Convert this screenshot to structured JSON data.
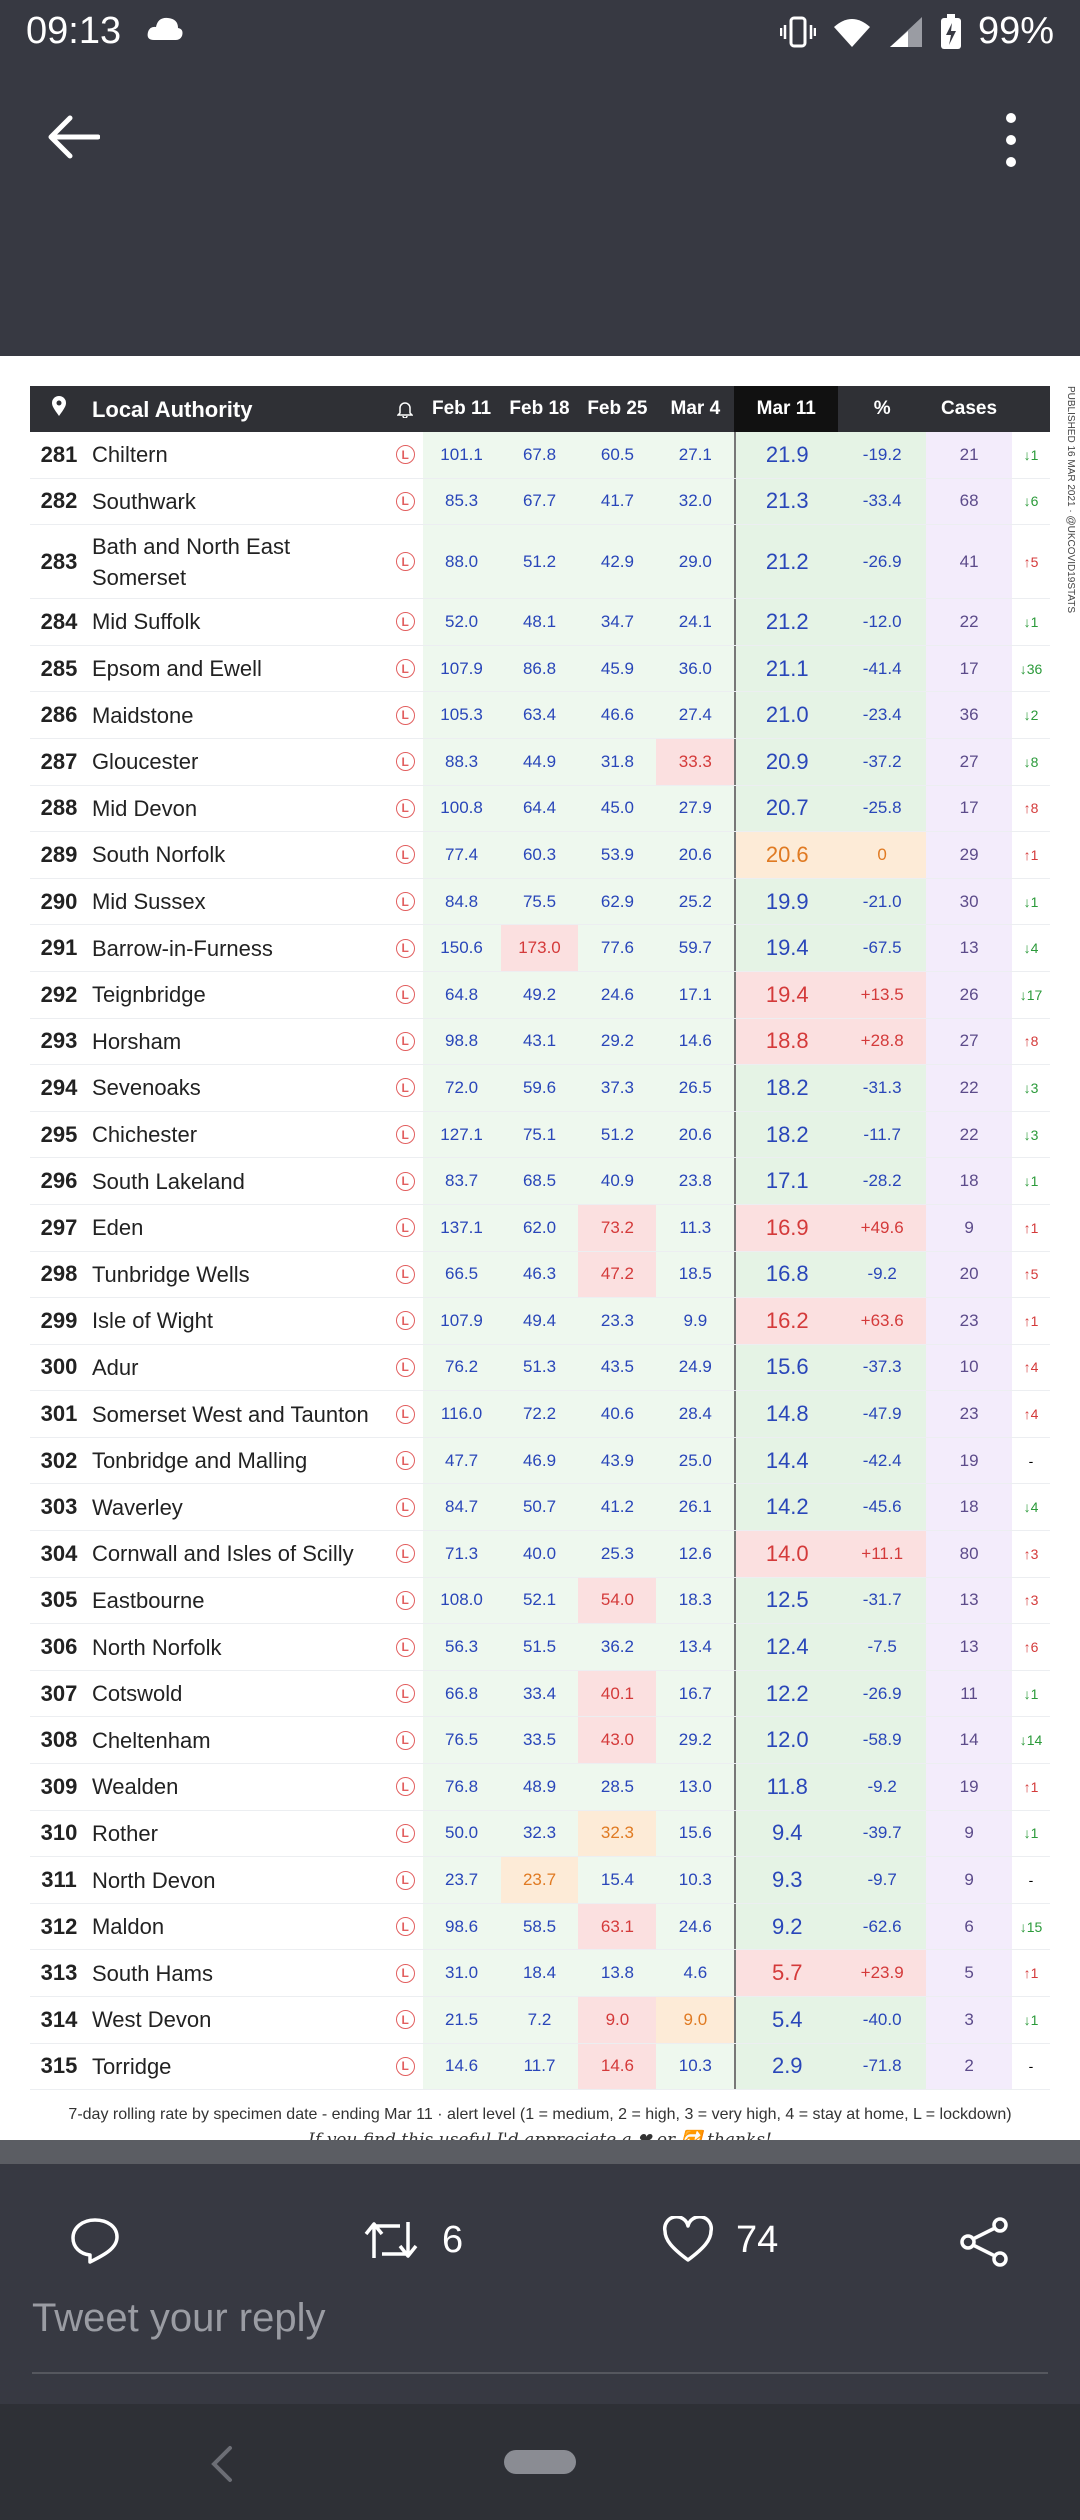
{
  "status": {
    "time": "09:13",
    "battery": "99%"
  },
  "table": {
    "headers": {
      "authority": "Local Authority",
      "w1": "Feb 11",
      "w2": "Feb 18",
      "w3": "Feb 25",
      "w4": "Mar 4",
      "current": "Mar 11",
      "pct": "%",
      "cases": "Cases"
    },
    "rows": [
      {
        "rank": "281",
        "name": "Chiltern",
        "w1": "101.1",
        "w2": "67.8",
        "w3": "60.5",
        "w4": "27.1",
        "rate": "21.9",
        "pct": "-19.2",
        "cases": "21",
        "change": "↓1",
        "dir": "dn"
      },
      {
        "rank": "282",
        "name": "Southwark",
        "w1": "85.3",
        "w2": "67.7",
        "w3": "41.7",
        "w4": "32.0",
        "rate": "21.3",
        "pct": "-33.4",
        "cases": "68",
        "change": "↓6",
        "dir": "dn"
      },
      {
        "rank": "283",
        "name": "Bath and North East Somerset",
        "w1": "88.0",
        "w2": "51.2",
        "w3": "42.9",
        "w4": "29.0",
        "rate": "21.2",
        "pct": "-26.9",
        "cases": "41",
        "change": "↑5",
        "dir": "up",
        "tall": true
      },
      {
        "rank": "284",
        "name": "Mid Suffolk",
        "w1": "52.0",
        "w2": "48.1",
        "w3": "34.7",
        "w4": "24.1",
        "rate": "21.2",
        "pct": "-12.0",
        "cases": "22",
        "change": "↓1",
        "dir": "dn"
      },
      {
        "rank": "285",
        "name": "Epsom and Ewell",
        "w1": "107.9",
        "w2": "86.8",
        "w3": "45.9",
        "w4": "36.0",
        "rate": "21.1",
        "pct": "-41.4",
        "cases": "17",
        "change": "↓36",
        "dir": "dn"
      },
      {
        "rank": "286",
        "name": "Maidstone",
        "w1": "105.3",
        "w2": "63.4",
        "w3": "46.6",
        "w4": "27.4",
        "rate": "21.0",
        "pct": "-23.4",
        "cases": "36",
        "change": "↓2",
        "dir": "dn"
      },
      {
        "rank": "287",
        "name": "Gloucester",
        "w1": "88.3",
        "w2": "44.9",
        "w3": "31.8",
        "w4": "33.3",
        "rate": "20.9",
        "pct": "-37.2",
        "cases": "27",
        "change": "↓8",
        "dir": "dn",
        "w4c": "r"
      },
      {
        "rank": "288",
        "name": "Mid Devon",
        "w1": "100.8",
        "w2": "64.4",
        "w3": "45.0",
        "w4": "27.9",
        "rate": "20.7",
        "pct": "-25.8",
        "cases": "17",
        "change": "↑8",
        "dir": "up"
      },
      {
        "rank": "289",
        "name": "South Norfolk",
        "w1": "77.4",
        "w2": "60.3",
        "w3": "53.9",
        "w4": "20.6",
        "rate": "20.6",
        "pct": "0",
        "cases": "29",
        "change": "↑1",
        "dir": "up",
        "ratec": "o"
      },
      {
        "rank": "290",
        "name": "Mid Sussex",
        "w1": "84.8",
        "w2": "75.5",
        "w3": "62.9",
        "w4": "25.2",
        "rate": "19.9",
        "pct": "-21.0",
        "cases": "30",
        "change": "↓1",
        "dir": "dn"
      },
      {
        "rank": "291",
        "name": "Barrow-in-Furness",
        "w1": "150.6",
        "w2": "173.0",
        "w3": "77.6",
        "w4": "59.7",
        "rate": "19.4",
        "pct": "-67.5",
        "cases": "13",
        "change": "↓4",
        "dir": "dn",
        "w2c": "r"
      },
      {
        "rank": "292",
        "name": "Teignbridge",
        "w1": "64.8",
        "w2": "49.2",
        "w3": "24.6",
        "w4": "17.1",
        "rate": "19.4",
        "pct": "+13.5",
        "cases": "26",
        "change": "↓17",
        "dir": "dn",
        "ratec": "r"
      },
      {
        "rank": "293",
        "name": "Horsham",
        "w1": "98.8",
        "w2": "43.1",
        "w3": "29.2",
        "w4": "14.6",
        "rate": "18.8",
        "pct": "+28.8",
        "cases": "27",
        "change": "↑8",
        "dir": "up",
        "ratec": "r"
      },
      {
        "rank": "294",
        "name": "Sevenoaks",
        "w1": "72.0",
        "w2": "59.6",
        "w3": "37.3",
        "w4": "26.5",
        "rate": "18.2",
        "pct": "-31.3",
        "cases": "22",
        "change": "↓3",
        "dir": "dn"
      },
      {
        "rank": "295",
        "name": "Chichester",
        "w1": "127.1",
        "w2": "75.1",
        "w3": "51.2",
        "w4": "20.6",
        "rate": "18.2",
        "pct": "-11.7",
        "cases": "22",
        "change": "↓3",
        "dir": "dn"
      },
      {
        "rank": "296",
        "name": "South Lakeland",
        "w1": "83.7",
        "w2": "68.5",
        "w3": "40.9",
        "w4": "23.8",
        "rate": "17.1",
        "pct": "-28.2",
        "cases": "18",
        "change": "↓1",
        "dir": "dn"
      },
      {
        "rank": "297",
        "name": "Eden",
        "w1": "137.1",
        "w2": "62.0",
        "w3": "73.2",
        "w4": "11.3",
        "rate": "16.9",
        "pct": "+49.6",
        "cases": "9",
        "change": "↑1",
        "dir": "up",
        "w3c": "r",
        "ratec": "r"
      },
      {
        "rank": "298",
        "name": "Tunbridge Wells",
        "w1": "66.5",
        "w2": "46.3",
        "w3": "47.2",
        "w4": "18.5",
        "rate": "16.8",
        "pct": "-9.2",
        "cases": "20",
        "change": "↑5",
        "dir": "up",
        "w3c": "r"
      },
      {
        "rank": "299",
        "name": "Isle of Wight",
        "w1": "107.9",
        "w2": "49.4",
        "w3": "23.3",
        "w4": "9.9",
        "rate": "16.2",
        "pct": "+63.6",
        "cases": "23",
        "change": "↑1",
        "dir": "up",
        "ratec": "r"
      },
      {
        "rank": "300",
        "name": "Adur",
        "w1": "76.2",
        "w2": "51.3",
        "w3": "43.5",
        "w4": "24.9",
        "rate": "15.6",
        "pct": "-37.3",
        "cases": "10",
        "change": "↑4",
        "dir": "up"
      },
      {
        "rank": "301",
        "name": "Somerset West and Taunton",
        "w1": "116.0",
        "w2": "72.2",
        "w3": "40.6",
        "w4": "28.4",
        "rate": "14.8",
        "pct": "-47.9",
        "cases": "23",
        "change": "↑4",
        "dir": "up"
      },
      {
        "rank": "302",
        "name": "Tonbridge and Malling",
        "w1": "47.7",
        "w2": "46.9",
        "w3": "43.9",
        "w4": "25.0",
        "rate": "14.4",
        "pct": "-42.4",
        "cases": "19",
        "change": "-",
        "dir": "nc"
      },
      {
        "rank": "303",
        "name": "Waverley",
        "w1": "84.7",
        "w2": "50.7",
        "w3": "41.2",
        "w4": "26.1",
        "rate": "14.2",
        "pct": "-45.6",
        "cases": "18",
        "change": "↓4",
        "dir": "dn"
      },
      {
        "rank": "304",
        "name": "Cornwall and Isles of Scilly",
        "w1": "71.3",
        "w2": "40.0",
        "w3": "25.3",
        "w4": "12.6",
        "rate": "14.0",
        "pct": "+11.1",
        "cases": "80",
        "change": "↑3",
        "dir": "up",
        "ratec": "r"
      },
      {
        "rank": "305",
        "name": "Eastbourne",
        "w1": "108.0",
        "w2": "52.1",
        "w3": "54.0",
        "w4": "18.3",
        "rate": "12.5",
        "pct": "-31.7",
        "cases": "13",
        "change": "↑3",
        "dir": "up",
        "w3c": "r"
      },
      {
        "rank": "306",
        "name": "North Norfolk",
        "w1": "56.3",
        "w2": "51.5",
        "w3": "36.2",
        "w4": "13.4",
        "rate": "12.4",
        "pct": "-7.5",
        "cases": "13",
        "change": "↑6",
        "dir": "up"
      },
      {
        "rank": "307",
        "name": "Cotswold",
        "w1": "66.8",
        "w2": "33.4",
        "w3": "40.1",
        "w4": "16.7",
        "rate": "12.2",
        "pct": "-26.9",
        "cases": "11",
        "change": "↓1",
        "dir": "dn",
        "w3c": "r"
      },
      {
        "rank": "308",
        "name": "Cheltenham",
        "w1": "76.5",
        "w2": "33.5",
        "w3": "43.0",
        "w4": "29.2",
        "rate": "12.0",
        "pct": "-58.9",
        "cases": "14",
        "change": "↓14",
        "dir": "dn",
        "w3c": "r"
      },
      {
        "rank": "309",
        "name": "Wealden",
        "w1": "76.8",
        "w2": "48.9",
        "w3": "28.5",
        "w4": "13.0",
        "rate": "11.8",
        "pct": "-9.2",
        "cases": "19",
        "change": "↑1",
        "dir": "up"
      },
      {
        "rank": "310",
        "name": "Rother",
        "w1": "50.0",
        "w2": "32.3",
        "w3": "32.3",
        "w4": "15.6",
        "rate": "9.4",
        "pct": "-39.7",
        "cases": "9",
        "change": "↓1",
        "dir": "dn",
        "w3c": "o"
      },
      {
        "rank": "311",
        "name": "North Devon",
        "w1": "23.7",
        "w2": "23.7",
        "w3": "15.4",
        "w4": "10.3",
        "rate": "9.3",
        "pct": "-9.7",
        "cases": "9",
        "change": "-",
        "dir": "nc",
        "w2c": "o"
      },
      {
        "rank": "312",
        "name": "Maldon",
        "w1": "98.6",
        "w2": "58.5",
        "w3": "63.1",
        "w4": "24.6",
        "rate": "9.2",
        "pct": "-62.6",
        "cases": "6",
        "change": "↓15",
        "dir": "dn",
        "w3c": "r"
      },
      {
        "rank": "313",
        "name": "South Hams",
        "w1": "31.0",
        "w2": "18.4",
        "w3": "13.8",
        "w4": "4.6",
        "rate": "5.7",
        "pct": "+23.9",
        "cases": "5",
        "change": "↑1",
        "dir": "up",
        "ratec": "r"
      },
      {
        "rank": "314",
        "name": "West Devon",
        "w1": "21.5",
        "w2": "7.2",
        "w3": "9.0",
        "w4": "9.0",
        "rate": "5.4",
        "pct": "-40.0",
        "cases": "3",
        "change": "↓1",
        "dir": "dn",
        "w3c": "r",
        "w4c": "o"
      },
      {
        "rank": "315",
        "name": "Torridge",
        "w1": "14.6",
        "w2": "11.7",
        "w3": "14.6",
        "w4": "10.3",
        "rate": "2.9",
        "pct": "-71.8",
        "cases": "2",
        "change": "-",
        "dir": "nc",
        "w3c": "r"
      }
    ],
    "side_text": "PUBLISHED 16 MAR 2021 · @UKCOVID19STATS",
    "footnote": "7-day rolling rate by specimen date - ending Mar 11 · alert level (1 = medium, 2 = high, 3 = very high, 4 = stay at home, L = lockdown)",
    "footnote2": "If you find this useful I'd appreciate a ❤ or 🔁 thanks!",
    "lockdown_letter": "L"
  },
  "tweet_actions": {
    "retweets": "6",
    "likes": "74"
  },
  "reply_placeholder": "Tweet your reply"
}
